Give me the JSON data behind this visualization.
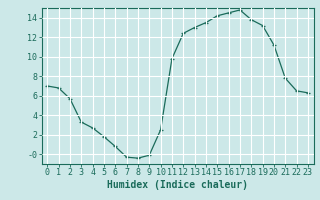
{
  "x": [
    0,
    1,
    2,
    3,
    4,
    5,
    6,
    7,
    8,
    9,
    10,
    11,
    12,
    13,
    14,
    15,
    16,
    17,
    18,
    19,
    20,
    21,
    22,
    23
  ],
  "y": [
    7.0,
    6.8,
    5.7,
    3.3,
    2.7,
    1.8,
    0.8,
    -0.3,
    -0.4,
    -0.1,
    2.5,
    9.8,
    12.4,
    13.0,
    13.5,
    14.2,
    14.5,
    14.8,
    13.8,
    13.2,
    11.2,
    7.8,
    6.5,
    6.3
  ],
  "line_color": "#1a6b5a",
  "marker": "+",
  "background_color": "#cce8e8",
  "grid_color": "#ffffff",
  "xlabel": "Humidex (Indice chaleur)",
  "ylim": [
    -1.0,
    15.0
  ],
  "xlim": [
    -0.5,
    23.5
  ],
  "yticks": [
    0,
    2,
    4,
    6,
    8,
    10,
    12,
    14
  ],
  "ytick_labels": [
    "-0",
    "2",
    "4",
    "6",
    "8",
    "10",
    "12",
    "14"
  ],
  "xticks": [
    0,
    1,
    2,
    3,
    4,
    5,
    6,
    7,
    8,
    9,
    10,
    11,
    12,
    13,
    14,
    15,
    16,
    17,
    18,
    19,
    20,
    21,
    22,
    23
  ],
  "axis_color": "#1a6b5a",
  "tick_color": "#1a6b5a",
  "label_color": "#1a6b5a",
  "font_size": 6,
  "label_font_size": 7
}
